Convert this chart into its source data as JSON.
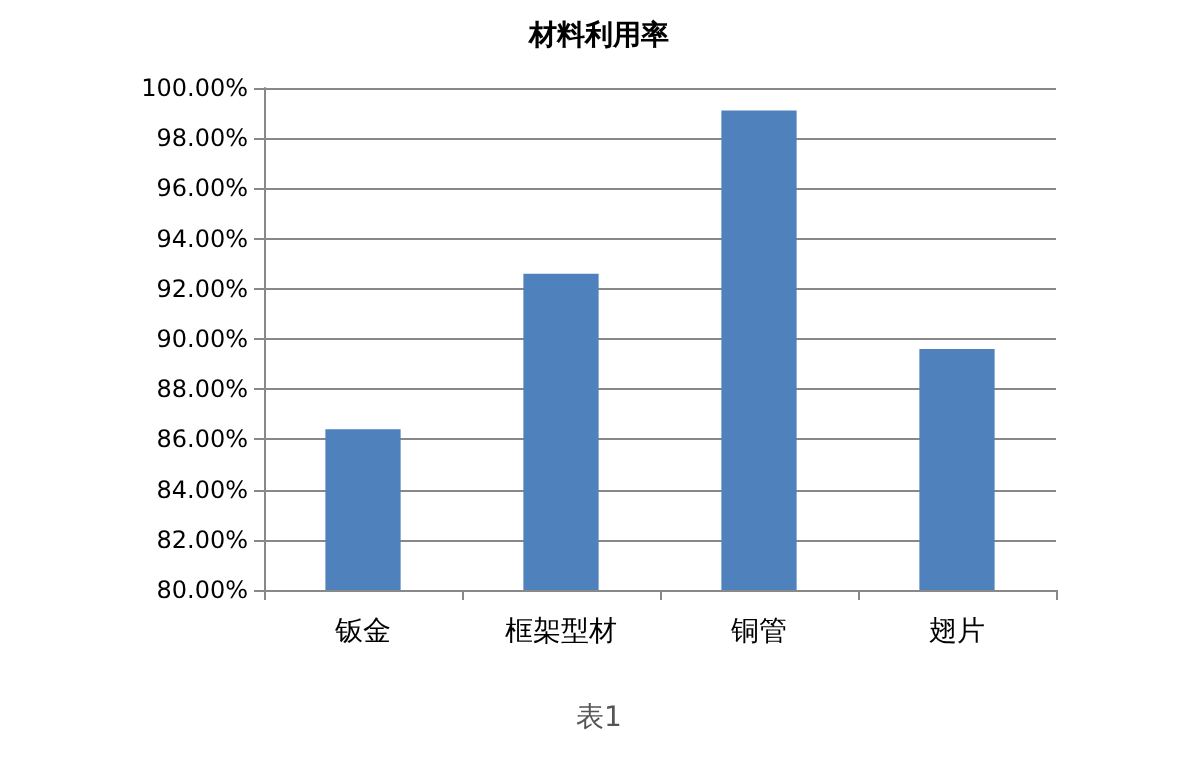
{
  "chart_data": {
    "type": "bar",
    "title": "材料利用率",
    "categories": [
      "钣金",
      "框架型材",
      "铜管",
      "翅片"
    ],
    "values": [
      86.4,
      92.6,
      99.1,
      89.6
    ],
    "color": "#4f81bd",
    "ylim": [
      80,
      100
    ],
    "yticks": [
      {
        "value": 80,
        "label": "80.00%"
      },
      {
        "value": 82,
        "label": "82.00%"
      },
      {
        "value": 84,
        "label": "84.00%"
      },
      {
        "value": 86,
        "label": "86.00%"
      },
      {
        "value": 88,
        "label": "88.00%"
      },
      {
        "value": 90,
        "label": "90.00%"
      },
      {
        "value": 92,
        "label": "92.00%"
      },
      {
        "value": 94,
        "label": "94.00%"
      },
      {
        "value": 96,
        "label": "96.00%"
      },
      {
        "value": 98,
        "label": "98.00%"
      },
      {
        "value": 100,
        "label": "100.00%"
      }
    ],
    "grid": "y",
    "annotations": [
      "表1"
    ]
  }
}
